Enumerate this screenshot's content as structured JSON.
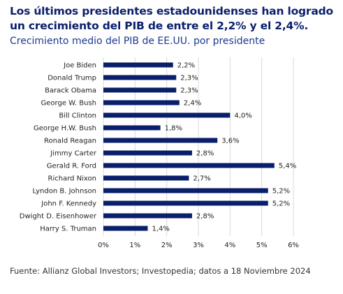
{
  "header": {
    "title": "Los últimos presidentes estadounidenses han logrado un crecimiento del PIB de entre el 2,2% y el 2,4%.",
    "subtitle": "Crecimiento medio del PIB de EE.UU. por presidente"
  },
  "chart_data": {
    "type": "bar",
    "orientation": "horizontal",
    "categories": [
      "Joe Biden",
      "Donald Trump",
      "Barack Obama",
      "George W. Bush",
      "Bill Clinton",
      "George H.W. Bush",
      "Ronald Reagan",
      "Jimmy Carter",
      "Gerald R. Ford",
      "Richard Nixon",
      "Lyndon B. Johnson",
      "John F. Kennedy",
      "Dwight D. Eisenhower",
      "Harry S. Truman"
    ],
    "values": [
      2.2,
      2.3,
      2.3,
      2.4,
      4.0,
      1.8,
      3.6,
      2.8,
      5.4,
      2.7,
      5.2,
      5.2,
      2.8,
      1.4
    ],
    "value_labels": [
      "2,2%",
      "2,3%",
      "2,3%",
      "2,4%",
      "4,0%",
      "1,8%",
      "3,6%",
      "2,8%",
      "5,4%",
      "2,7%",
      "5,2%",
      "5,2%",
      "2,8%",
      "1,4%"
    ],
    "x_ticks": [
      0,
      1,
      2,
      3,
      4,
      5,
      6
    ],
    "x_tick_labels": [
      "0%",
      "1%",
      "2%",
      "3%",
      "4%",
      "5%",
      "6%"
    ],
    "xlim": [
      0,
      6
    ],
    "grid": true,
    "bar_color": "#0a1f6b"
  },
  "footer": {
    "source": "Fuente: Allianz Global Investors; Investopedia; datos a 18 Noviembre 2024"
  }
}
